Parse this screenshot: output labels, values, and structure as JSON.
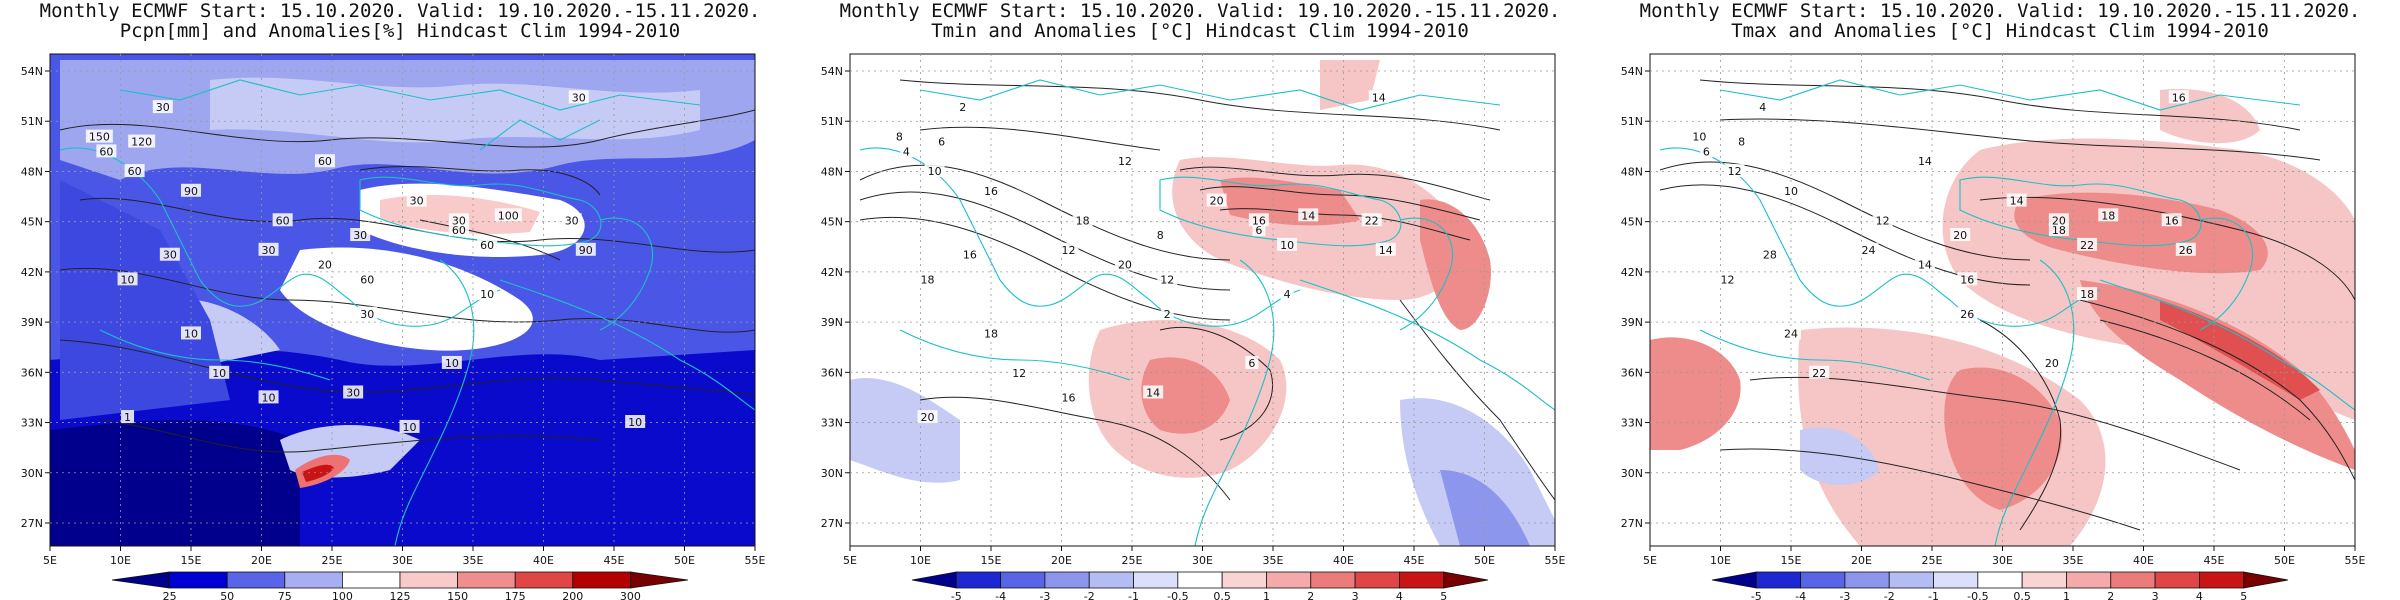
{
  "panels": [
    {
      "title_line1": "Monthly ECMWF Start: 15.10.2020. Valid: 19.10.2020.-15.11.2020.",
      "title_line2": "Pcpn[mm] and Anomalies[%] Hindcast Clim 1994-2010",
      "lon_labels": [
        "5E",
        "10E",
        "15E",
        "20E",
        "25E",
        "30E",
        "35E",
        "40E",
        "45E",
        "50E",
        "55E"
      ],
      "lat_labels": [
        "54N",
        "51N",
        "48N",
        "45N",
        "42N",
        "39N",
        "36N",
        "33N",
        "30N",
        "27N"
      ],
      "colorbar_labels": [
        "25",
        "50",
        "75",
        "100",
        "125",
        "150",
        "175",
        "200",
        "300"
      ],
      "contour_labels": [
        "30",
        "60",
        "120",
        "150",
        "60",
        "60",
        "30",
        "90",
        "60",
        "30",
        "30",
        "60",
        "30",
        "60",
        "30",
        "90",
        "30",
        "10",
        "20",
        "60",
        "100",
        "30",
        "10",
        "30",
        "10",
        "10",
        "10",
        "30",
        "10",
        "1",
        "10",
        "10"
      ],
      "colors": {
        "background": "#4a56e6",
        "low": "#0a0acc",
        "mid": "#9ea6f0",
        "neutral": "#ffffff",
        "high": "#ee7272",
        "extreme": "#c81414"
      }
    },
    {
      "title_line1": "Monthly ECMWF Start: 15.10.2020. Valid: 19.10.2020.-15.11.2020.",
      "title_line2": "Tmin and Anomalies [°C] Hindcast Clim 1994-2010",
      "lon_labels": [
        "5E",
        "10E",
        "15E",
        "20E",
        "25E",
        "30E",
        "35E",
        "40E",
        "45E",
        "50E",
        "55E"
      ],
      "lat_labels": [
        "54N",
        "51N",
        "48N",
        "45N",
        "42N",
        "39N",
        "36N",
        "33N",
        "30N",
        "27N"
      ],
      "colorbar_labels": [
        "-5",
        "-4",
        "-3",
        "-2",
        "-1",
        "-0.5",
        "0.5",
        "1",
        "2",
        "3",
        "4",
        "5"
      ],
      "contour_labels": [
        "2",
        "4",
        "6",
        "8",
        "10",
        "12",
        "14",
        "16",
        "18",
        "20",
        "22",
        "6",
        "8",
        "10",
        "12",
        "14",
        "16",
        "18",
        "20",
        "12",
        "14",
        "16",
        "18",
        "2",
        "4",
        "6",
        "12",
        "14",
        "16",
        "20"
      ],
      "colors": {
        "neutral": "#ffffff",
        "warm_light": "#f6c6c6",
        "warm_mid": "#ee8c8c",
        "cool_light": "#c6cbf5",
        "cool_mid": "#8c96ec"
      }
    },
    {
      "title_line1": "Monthly ECMWF Start: 15.10.2020. Valid: 19.10.2020.-15.11.2020.",
      "title_line2": "Tmax and Anomalies [°C] Hindcast Clim 1994-2010",
      "lon_labels": [
        "5E",
        "10E",
        "15E",
        "20E",
        "25E",
        "30E",
        "35E",
        "40E",
        "45E",
        "50E",
        "55E"
      ],
      "lat_labels": [
        "54N",
        "51N",
        "48N",
        "45N",
        "42N",
        "39N",
        "36N",
        "33N",
        "30N",
        "27N"
      ],
      "colorbar_labels": [
        "-5",
        "-4",
        "-3",
        "-2",
        "-1",
        "-0.5",
        "0.5",
        "1",
        "2",
        "3",
        "4",
        "5"
      ],
      "contour_labels": [
        "4",
        "6",
        "8",
        "10",
        "12",
        "14",
        "16",
        "10",
        "12",
        "14",
        "16",
        "18",
        "20",
        "22",
        "24",
        "26",
        "28",
        "12",
        "14",
        "16",
        "18",
        "20",
        "24",
        "26",
        "18",
        "20",
        "22"
      ],
      "colors": {
        "neutral": "#ffffff",
        "warm_light": "#f6c6c6",
        "warm_mid": "#ee8c8c",
        "warm_strong": "#e05050",
        "cool_light": "#c6cbf5"
      }
    }
  ],
  "colorbar_colors": {
    "precip": [
      "#00008c",
      "#0000d2",
      "#5a64e6",
      "#a8aef2",
      "#ffffff",
      "#f8caca",
      "#ee8e8e",
      "#e04646",
      "#b40000",
      "#780000"
    ],
    "temp": [
      "#00008c",
      "#1e28d2",
      "#5a64e6",
      "#8c96ec",
      "#b4bcf4",
      "#dcdffa",
      "#ffffff",
      "#f8d4d4",
      "#f4aaaa",
      "#ec7c7c",
      "#e04646",
      "#c81414",
      "#780000"
    ]
  }
}
